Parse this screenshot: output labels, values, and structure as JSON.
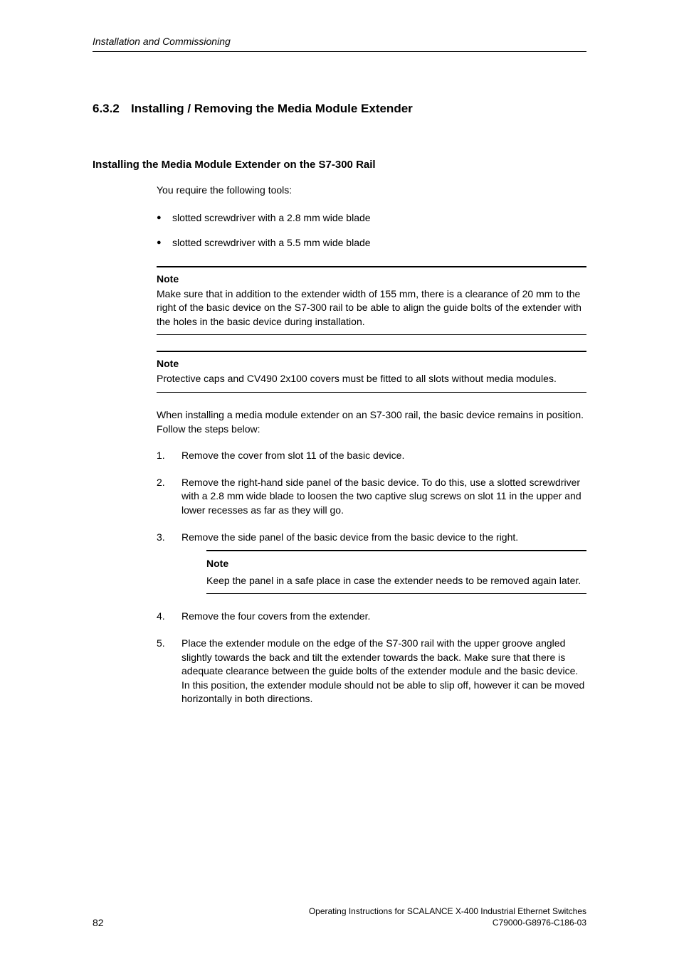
{
  "running_header": "Installation and Commissioning",
  "section": {
    "number": "6.3.2",
    "title": "Installing / Removing the Media Module Extender"
  },
  "subsection_title": "Installing the Media Module Extender on the S7-300 Rail",
  "intro_text": "You require the following tools:",
  "bullets": [
    "slotted screwdriver with a 2.8 mm wide blade",
    "slotted screwdriver with a 5.5 mm wide blade"
  ],
  "note1": {
    "label": "Note",
    "text": "Make sure that in addition to the extender width of 155 mm, there is a clearance of 20 mm to the right of the basic device on the S7-300 rail to be able to align the guide bolts of the extender with the holes in the basic device during installation."
  },
  "note2": {
    "label": "Note",
    "text": "Protective caps and CV490 2x100 covers must be fitted to all slots without media modules."
  },
  "mid_text": "When installing a media module extender on an S7-300 rail, the basic device remains in position. Follow the steps below:",
  "steps": {
    "s1": "Remove the cover from slot 11 of the basic device.",
    "s2": "Remove the right-hand side panel of the basic device. To do this, use a slotted screwdriver with a 2.8 mm wide blade to loosen the two captive slug screws on slot 11 in the upper and lower recesses as far as they will go.",
    "s3": "Remove the side panel of the basic device from the basic device to the right.",
    "s4": "Remove the four covers from the extender.",
    "s5": "Place the extender module on the edge of the S7-300 rail with the upper groove angled slightly towards the back and tilt the extender towards the back. Make sure that there is adequate clearance between the guide bolts of the extender module and the basic device. In this position, the extender module should not be able to slip off, however it can be moved horizontally in both directions."
  },
  "note3": {
    "label": "Note",
    "text": "Keep the panel in a safe place in case the extender needs to be removed again later."
  },
  "footer": {
    "page_number": "82",
    "line1": "Operating Instructions for SCALANCE X-400 Industrial Ethernet Switches",
    "line2": "C79000-G8976-C186-03"
  }
}
